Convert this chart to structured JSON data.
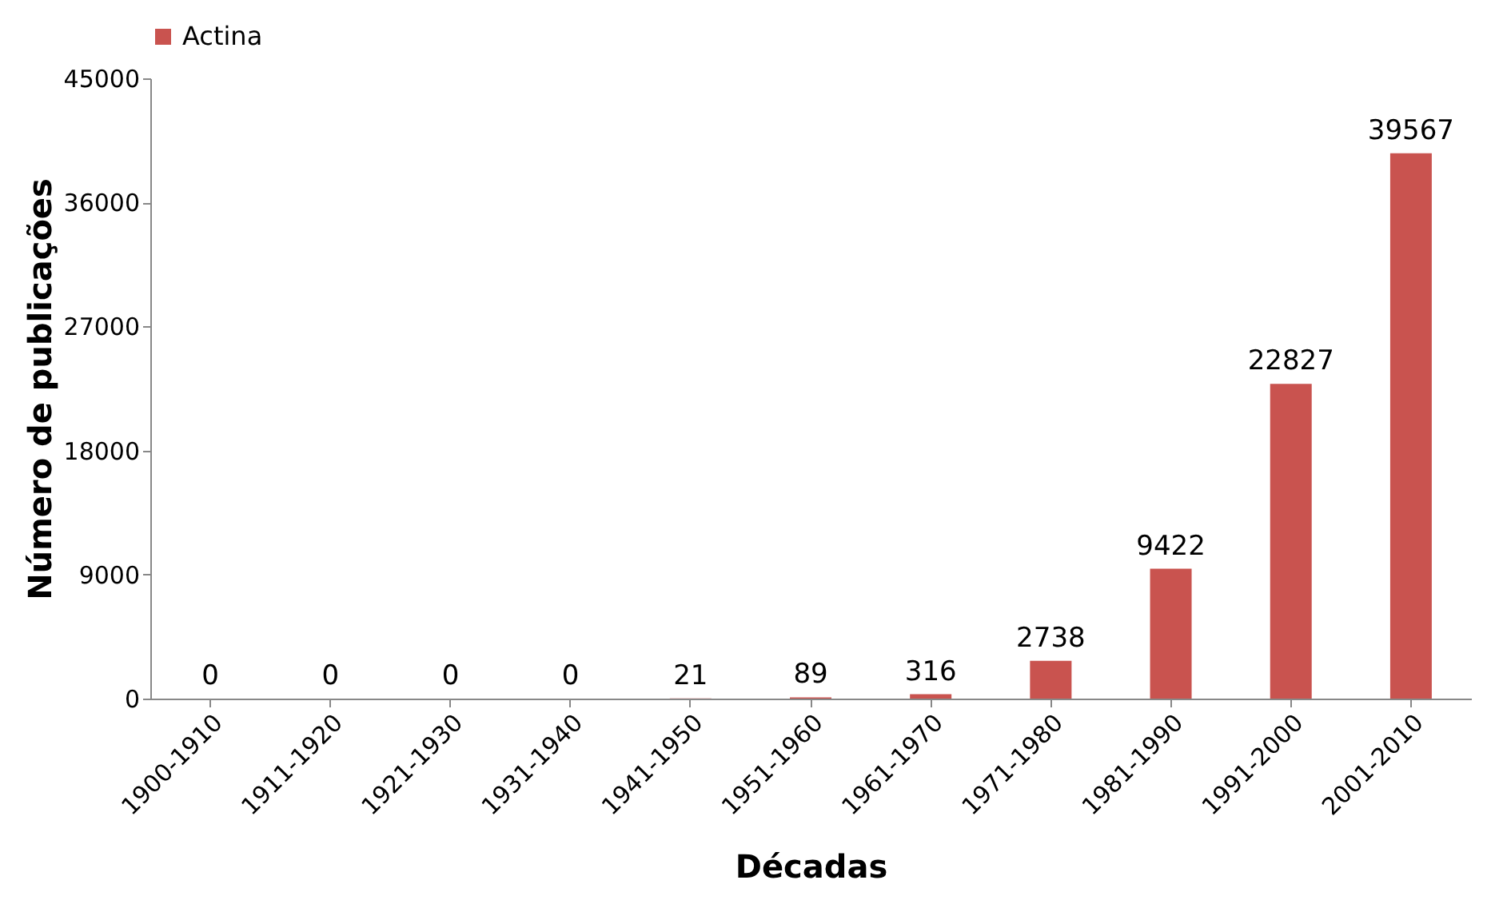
{
  "chart_data": {
    "type": "bar",
    "xlabel": "Décadas",
    "ylabel": "Número de publicações",
    "categories": [
      "1900-1910",
      "1911-1920",
      "1921-1930",
      "1931-1940",
      "1941-1950",
      "1951-1960",
      "1961-1970",
      "1971-1980",
      "1981-1990",
      "1991-2000",
      "2001-2010"
    ],
    "series": [
      {
        "name": "Actina",
        "color": "#c9534f",
        "values": [
          0,
          0,
          0,
          0,
          21,
          89,
          316,
          2738,
          9422,
          22827,
          39567
        ]
      }
    ],
    "ylim": [
      0,
      45000
    ],
    "yticks": [
      0,
      9000,
      18000,
      27000,
      36000,
      45000
    ],
    "data_labels": true,
    "legend": "top",
    "grid": false
  }
}
